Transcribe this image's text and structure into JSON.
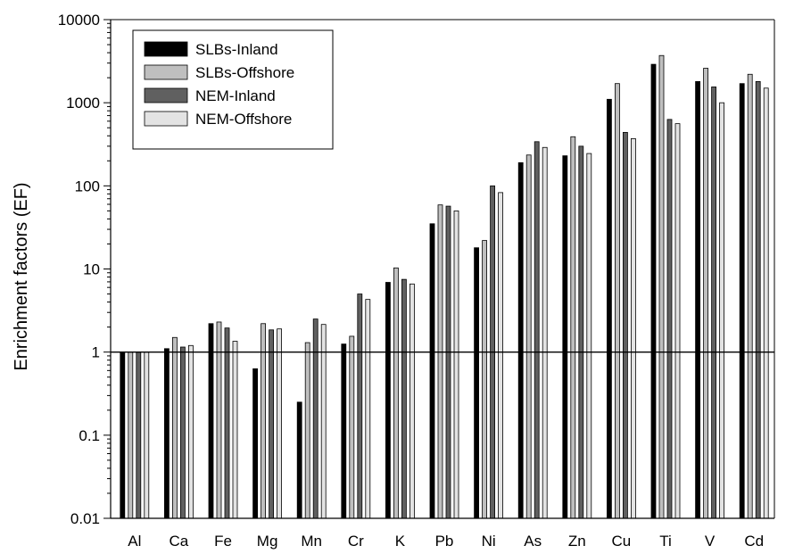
{
  "chart_data": {
    "type": "bar",
    "ylabel": "Enrichment factors (EF)",
    "xlabel": "",
    "yscale": "log",
    "ylim": [
      0.01,
      10000
    ],
    "y_ticks": [
      {
        "value": 0.01,
        "label": "0.01"
      },
      {
        "value": 0.1,
        "label": "0.1"
      },
      {
        "value": 1,
        "label": "1"
      },
      {
        "value": 10,
        "label": "10"
      },
      {
        "value": 100,
        "label": "100"
      },
      {
        "value": 1000,
        "label": "1000"
      },
      {
        "value": 10000,
        "label": "10000"
      }
    ],
    "reference_line": 1,
    "legend_position": "top-left",
    "categories": [
      "Al",
      "Ca",
      "Fe",
      "Mg",
      "Mn",
      "Cr",
      "K",
      "Pb",
      "Ni",
      "As",
      "Zn",
      "Cu",
      "Ti",
      "V",
      "Cd"
    ],
    "series": [
      {
        "name": "SLBs-Inland",
        "color": "#000000",
        "values": [
          1,
          1.1,
          2.2,
          0.63,
          0.25,
          1.25,
          6.9,
          35,
          18,
          190,
          230,
          1100,
          2900,
          1800,
          1700
        ]
      },
      {
        "name": "SLBs-Offshore",
        "color": "#bfbfbf",
        "values": [
          1,
          1.5,
          2.3,
          2.2,
          1.3,
          1.55,
          10.3,
          59,
          22,
          235,
          390,
          1700,
          3700,
          2600,
          2200
        ]
      },
      {
        "name": "NEM-Inland",
        "color": "#606060",
        "values": [
          1,
          1.15,
          1.95,
          1.85,
          2.5,
          5,
          7.5,
          57,
          100,
          340,
          300,
          440,
          630,
          1550,
          1800
        ]
      },
      {
        "name": "NEM-Offshore",
        "color": "#e3e3e3",
        "values": [
          1,
          1.2,
          1.35,
          1.9,
          2.15,
          4.3,
          6.6,
          50,
          83,
          290,
          245,
          370,
          560,
          1000,
          1500
        ]
      }
    ]
  }
}
